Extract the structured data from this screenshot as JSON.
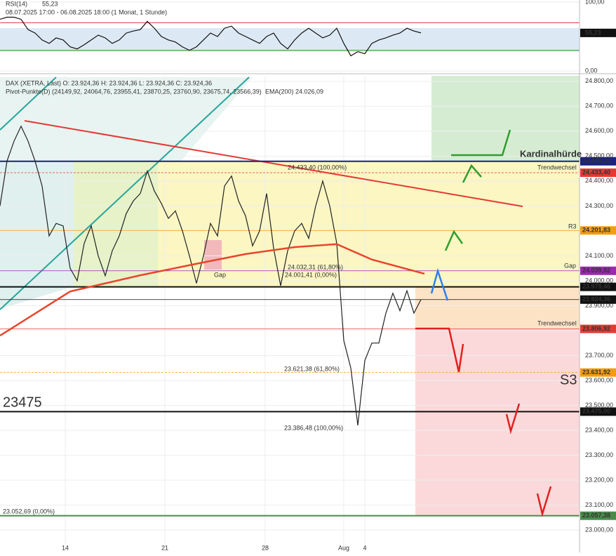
{
  "chart_data": [
    {
      "type": "line",
      "title": "RSI(14)",
      "current_label": "55,23",
      "current": 55.23,
      "subtitle": "08.07.2025 17:00 - 06.08.2025 18:00  (1 Monat, 1 Stunde)",
      "ylim": [
        -4,
        103
      ],
      "yticks": [
        {
          "value": 100,
          "label": "100,00"
        },
        {
          "value": 0,
          "label": "0,00"
        }
      ],
      "bands": [
        70,
        30
      ],
      "xlim": [
        0,
        82.6
      ],
      "series": [
        {
          "name": "RSI",
          "color": "#111111",
          "x": [
            0,
            1,
            2,
            3,
            4,
            5,
            6,
            7,
            8,
            9,
            10,
            11,
            12,
            13,
            14,
            15,
            16,
            17,
            18,
            19,
            20,
            21,
            22,
            23,
            24,
            25,
            26,
            27,
            28,
            29,
            30,
            31,
            32,
            33,
            34,
            35,
            36,
            37,
            38,
            39,
            40,
            41,
            42,
            43,
            44,
            45,
            46,
            47,
            48,
            49,
            50,
            51,
            52,
            53,
            54,
            55,
            56,
            57,
            58,
            59,
            60
          ],
          "values": [
            75,
            78,
            78,
            75,
            60,
            55,
            45,
            40,
            48,
            45,
            35,
            32,
            38,
            45,
            52,
            48,
            40,
            45,
            55,
            58,
            60,
            72,
            62,
            50,
            45,
            42,
            35,
            30,
            35,
            45,
            55,
            50,
            62,
            65,
            55,
            50,
            45,
            40,
            50,
            55,
            40,
            32,
            45,
            55,
            62,
            55,
            48,
            52,
            62,
            40,
            22,
            28,
            25,
            40,
            45,
            48,
            52,
            55,
            62,
            58,
            55.23
          ]
        }
      ]
    },
    {
      "type": "line",
      "title": "DAX (XETRA, Last)  O: 23.924,36  H: 23.924,36  L: 23.924,36  C: 23.924,36",
      "subtitle": "Pivot-Punkte(D) (24149,92, 24064,76, 23955,41, 23870,25, 23760,90, 23675,74, 23566,39)",
      "ylim": [
        22910,
        24822
      ],
      "xlim": [
        0,
        82.6
      ],
      "yticks": [
        {
          "value": 24800,
          "label": "24.800,00"
        },
        {
          "value": 24700,
          "label": "24.700,00"
        },
        {
          "value": 24600,
          "label": "24.600,00"
        },
        {
          "value": 24500,
          "label": "24.500,00"
        },
        {
          "value": 24400,
          "label": "24.400,00"
        },
        {
          "value": 24300,
          "label": "24.300,00"
        },
        {
          "value": 24200,
          "label": "24.200,00"
        },
        {
          "value": 24100,
          "label": "24.100,00"
        },
        {
          "value": 24000,
          "label": "24.000,00"
        },
        {
          "value": 23900,
          "label": "23.900,00"
        },
        {
          "value": 23800,
          "label": "23.800,00"
        },
        {
          "value": 23700,
          "label": "23.700,00"
        },
        {
          "value": 23600,
          "label": "23.600,00"
        },
        {
          "value": 23500,
          "label": "23.500,00"
        },
        {
          "value": 23400,
          "label": "23.400,00"
        },
        {
          "value": 23300,
          "label": "23.300,00"
        },
        {
          "value": 23200,
          "label": "23.200,00"
        },
        {
          "value": 23100,
          "label": "23.100,00"
        },
        {
          "value": 23000,
          "label": "23.000,00"
        }
      ],
      "xticks": [
        {
          "value": 9.3,
          "label": "14"
        },
        {
          "value": 23.5,
          "label": "21"
        },
        {
          "value": 37.8,
          "label": "28"
        },
        {
          "value": 49,
          "label": "Aug"
        },
        {
          "value": 52,
          "label": "4"
        }
      ],
      "series": [
        {
          "name": "DAX",
          "color": "#222222",
          "x": [
            0,
            1,
            2,
            3,
            4,
            5,
            6,
            7,
            8,
            9,
            10,
            11,
            12,
            13,
            14,
            15,
            16,
            17,
            18,
            19,
            20,
            21,
            22,
            23,
            24,
            25,
            26,
            27,
            28,
            29,
            30,
            31,
            32,
            33,
            34,
            35,
            36,
            37,
            38,
            39,
            40,
            41,
            42,
            43,
            44,
            45,
            46,
            47,
            48,
            49,
            50,
            51,
            52,
            53,
            54,
            55,
            56,
            57,
            58,
            59,
            60
          ],
          "values": [
            24300,
            24480,
            24560,
            24620,
            24560,
            24480,
            24380,
            24180,
            24230,
            24220,
            24050,
            24000,
            24150,
            24220,
            24100,
            24020,
            24120,
            24180,
            24270,
            24320,
            24350,
            24440,
            24360,
            24310,
            24250,
            24280,
            24200,
            24100,
            23990,
            24100,
            24230,
            24180,
            24380,
            24420,
            24320,
            24260,
            24140,
            24200,
            24350,
            24130,
            23980,
            24120,
            24200,
            24230,
            24170,
            24300,
            24400,
            24300,
            24150,
            23760,
            23650,
            23420,
            23680,
            23750,
            23750,
            23870,
            23950,
            23880,
            23960,
            23870,
            23924.36
          ]
        },
        {
          "name": "EMA(200) 24.026,09",
          "color": "#e8452c",
          "x": [
            0,
            10,
            20,
            28,
            35,
            42,
            48,
            53,
            60.5
          ],
          "values": [
            23780,
            23957,
            24022,
            24068,
            24107,
            24135,
            24147,
            24085,
            24028
          ]
        }
      ],
      "levels": [
        {
          "value": 24479.2,
          "label": "24.479,20",
          "color": "#1a237e"
        },
        {
          "value": 24433.4,
          "label": "24.433,40",
          "color": "#e53935"
        },
        {
          "value": 24201.83,
          "label": "24.201,83",
          "color": "#f39c12"
        },
        {
          "value": 24039.92,
          "label": "24.039,92",
          "color": "#9c27b0"
        },
        {
          "value": 23975.46,
          "label": "23.975,46",
          "color": "#111111"
        },
        {
          "value": 23924.36,
          "label": "23.924,36",
          "color": "#111111"
        },
        {
          "value": 23806.92,
          "label": "23.806,92",
          "color": "#e53935"
        },
        {
          "value": 23631.92,
          "label": "23.631,92",
          "color": "#f39c12"
        },
        {
          "value": 23475,
          "label": "23.475,00",
          "color": "#111111"
        },
        {
          "value": 23057.38,
          "label": "23.057,38",
          "color": "#4a8a4a"
        }
      ],
      "annotations": [
        "Kardinalhürde",
        "Trendwechsel",
        "Trendwechsel",
        "R3",
        "Gap",
        "Gap",
        "S3",
        "23475",
        "24.001,41 (0,00%)",
        "24.032,31 (61,80%)",
        "23.621,38 (61,80%)",
        "23.386,48 (100,00%)",
        "24.433,40 (100,00%)",
        "23.052,69 (0,00%)"
      ]
    }
  ]
}
